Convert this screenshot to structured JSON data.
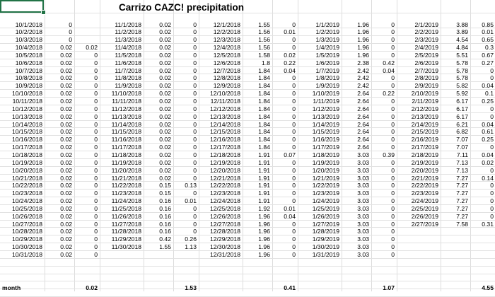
{
  "title": "Carrizo CAZC! precipitation",
  "summary_label": "month",
  "monthly_totals": [
    "0.02",
    "1.53",
    "0.41",
    "1.07",
    "4.55"
  ],
  "blocks": [
    {
      "rows": [
        [
          "10/1/2018",
          "0",
          ""
        ],
        [
          "10/2/2018",
          "0",
          ""
        ],
        [
          "10/3/2018",
          "0",
          ""
        ],
        [
          "10/4/2018",
          "0.02",
          "0.02"
        ],
        [
          "10/5/2018",
          "0.02",
          "0"
        ],
        [
          "10/6/2018",
          "0.02",
          "0"
        ],
        [
          "10/7/2018",
          "0.02",
          "0"
        ],
        [
          "10/8/2018",
          "0.02",
          "0"
        ],
        [
          "10/9/2018",
          "0.02",
          "0"
        ],
        [
          "10/10/2018",
          "0.02",
          "0"
        ],
        [
          "10/11/2018",
          "0.02",
          "0"
        ],
        [
          "10/12/2018",
          "0.02",
          "0"
        ],
        [
          "10/13/2018",
          "0.02",
          "0"
        ],
        [
          "10/14/2018",
          "0.02",
          "0"
        ],
        [
          "10/15/2018",
          "0.02",
          "0"
        ],
        [
          "10/16/2018",
          "0.02",
          "0"
        ],
        [
          "10/17/2018",
          "0.02",
          "0"
        ],
        [
          "10/18/2018",
          "0.02",
          "0"
        ],
        [
          "10/19/2018",
          "0.02",
          "0"
        ],
        [
          "10/20/2018",
          "0.02",
          "0"
        ],
        [
          "10/21/2018",
          "0.02",
          "0"
        ],
        [
          "10/22/2018",
          "0.02",
          "0"
        ],
        [
          "10/23/2018",
          "0.02",
          "0"
        ],
        [
          "10/24/2018",
          "0.02",
          "0"
        ],
        [
          "10/25/2018",
          "0.02",
          "0"
        ],
        [
          "10/26/2018",
          "0.02",
          "0"
        ],
        [
          "10/27/2018",
          "0.02",
          "0"
        ],
        [
          "10/28/2018",
          "0.02",
          "0"
        ],
        [
          "10/29/2018",
          "0.02",
          "0"
        ],
        [
          "10/30/2018",
          "0.02",
          "0"
        ],
        [
          "10/31/2018",
          "0.02",
          "0"
        ]
      ]
    },
    {
      "rows": [
        [
          "11/1/2018",
          "0.02",
          "0"
        ],
        [
          "11/2/2018",
          "0.02",
          "0"
        ],
        [
          "11/3/2018",
          "0.02",
          "0"
        ],
        [
          "11/4/2018",
          "0.02",
          "0"
        ],
        [
          "11/5/2018",
          "0.02",
          "0"
        ],
        [
          "11/6/2018",
          "0.02",
          "0"
        ],
        [
          "11/7/2018",
          "0.02",
          "0"
        ],
        [
          "11/8/2018",
          "0.02",
          "0"
        ],
        [
          "11/9/2018",
          "0.02",
          "0"
        ],
        [
          "11/10/2018",
          "0.02",
          "0"
        ],
        [
          "11/11/2018",
          "0.02",
          "0"
        ],
        [
          "11/12/2018",
          "0.02",
          "0"
        ],
        [
          "11/13/2018",
          "0.02",
          "0"
        ],
        [
          "11/14/2018",
          "0.02",
          "0"
        ],
        [
          "11/15/2018",
          "0.02",
          "0"
        ],
        [
          "11/16/2018",
          "0.02",
          "0"
        ],
        [
          "11/17/2018",
          "0.02",
          "0"
        ],
        [
          "11/18/2018",
          "0.02",
          "0"
        ],
        [
          "11/19/2018",
          "0.02",
          "0"
        ],
        [
          "11/20/2018",
          "0.02",
          "0"
        ],
        [
          "11/21/2018",
          "0.02",
          "0"
        ],
        [
          "11/22/2018",
          "0.15",
          "0.13"
        ],
        [
          "11/23/2018",
          "0.15",
          "0"
        ],
        [
          "11/24/2018",
          "0.16",
          "0.01"
        ],
        [
          "11/25/2018",
          "0.16",
          "0"
        ],
        [
          "11/26/2018",
          "0.16",
          "0"
        ],
        [
          "11/27/2018",
          "0.16",
          "0"
        ],
        [
          "11/28/2018",
          "0.16",
          "0"
        ],
        [
          "11/29/2018",
          "0.42",
          "0.26"
        ],
        [
          "11/30/2018",
          "1.55",
          "1.13"
        ],
        [
          "",
          "",
          ""
        ]
      ]
    },
    {
      "rows": [
        [
          "12/1/2018",
          "1.55",
          "0"
        ],
        [
          "12/2/2018",
          "1.56",
          "0.01"
        ],
        [
          "12/3/2018",
          "1.56",
          "0"
        ],
        [
          "12/4/2018",
          "1.56",
          "0"
        ],
        [
          "12/5/2018",
          "1.58",
          "0.02"
        ],
        [
          "12/6/2018",
          "1.8",
          "0.22"
        ],
        [
          "12/7/2018",
          "1.84",
          "0.04"
        ],
        [
          "12/8/2018",
          "1.84",
          "0"
        ],
        [
          "12/9/2018",
          "1.84",
          "0"
        ],
        [
          "12/10/2018",
          "1.84",
          "0"
        ],
        [
          "12/11/2018",
          "1.84",
          "0"
        ],
        [
          "12/12/2018",
          "1.84",
          "0"
        ],
        [
          "12/13/2018",
          "1.84",
          "0"
        ],
        [
          "12/14/2018",
          "1.84",
          "0"
        ],
        [
          "12/15/2018",
          "1.84",
          "0"
        ],
        [
          "12/16/2018",
          "1.84",
          "0"
        ],
        [
          "12/17/2018",
          "1.84",
          "0"
        ],
        [
          "12/18/2018",
          "1.91",
          "0.07"
        ],
        [
          "12/19/2018",
          "1.91",
          "0"
        ],
        [
          "12/20/2018",
          "1.91",
          "0"
        ],
        [
          "12/21/2018",
          "1.91",
          "0"
        ],
        [
          "12/22/2018",
          "1.91",
          "0"
        ],
        [
          "12/23/2018",
          "1.91",
          "0"
        ],
        [
          "12/24/2018",
          "1.91",
          "0"
        ],
        [
          "12/25/2018",
          "1.92",
          "0.01"
        ],
        [
          "12/26/2018",
          "1.96",
          "0.04"
        ],
        [
          "12/27/2018",
          "1.96",
          "0"
        ],
        [
          "12/28/2018",
          "1.96",
          "0"
        ],
        [
          "12/29/2018",
          "1.96",
          "0"
        ],
        [
          "12/30/2018",
          "1.96",
          "0"
        ],
        [
          "12/31/2018",
          "1.96",
          "0"
        ]
      ]
    },
    {
      "rows": [
        [
          "1/1/2019",
          "1.96",
          "0"
        ],
        [
          "1/2/2019",
          "1.96",
          "0"
        ],
        [
          "1/3/2019",
          "1.96",
          "0"
        ],
        [
          "1/4/2019",
          "1.96",
          "0"
        ],
        [
          "1/5/2019",
          "1.96",
          "0"
        ],
        [
          "1/6/2019",
          "2.38",
          "0.42"
        ],
        [
          "1/7/2019",
          "2.42",
          "0.04"
        ],
        [
          "1/8/2019",
          "2.42",
          "0"
        ],
        [
          "1/9/2019",
          "2.42",
          "0"
        ],
        [
          "1/10/2019",
          "2.64",
          "0.22"
        ],
        [
          "1/11/2019",
          "2.64",
          "0"
        ],
        [
          "1/12/2019",
          "2.64",
          "0"
        ],
        [
          "1/13/2019",
          "2.64",
          "0"
        ],
        [
          "1/14/2019",
          "2.64",
          "0"
        ],
        [
          "1/15/2019",
          "2.64",
          "0"
        ],
        [
          "1/16/2019",
          "2.64",
          "0"
        ],
        [
          "1/17/2019",
          "2.64",
          "0"
        ],
        [
          "1/18/2019",
          "3.03",
          "0.39"
        ],
        [
          "1/19/2019",
          "3.03",
          "0"
        ],
        [
          "1/20/2019",
          "3.03",
          "0"
        ],
        [
          "1/21/2019",
          "3.03",
          "0"
        ],
        [
          "1/22/2019",
          "3.03",
          "0"
        ],
        [
          "1/23/2019",
          "3.03",
          "0"
        ],
        [
          "1/24/2019",
          "3.03",
          "0"
        ],
        [
          "1/25/2019",
          "3.03",
          "0"
        ],
        [
          "1/26/2019",
          "3.03",
          "0"
        ],
        [
          "1/27/2019",
          "3.03",
          "0"
        ],
        [
          "1/28/2019",
          "3.03",
          "0"
        ],
        [
          "1/29/2019",
          "3.03",
          "0"
        ],
        [
          "1/30/2019",
          "3.03",
          "0"
        ],
        [
          "1/31/2019",
          "3.03",
          "0"
        ]
      ]
    },
    {
      "rows": [
        [
          "2/1/2019",
          "3.88",
          "0.85"
        ],
        [
          "2/2/2019",
          "3.89",
          "0.01"
        ],
        [
          "2/3/2019",
          "4.54",
          "0.65"
        ],
        [
          "2/4/2019",
          "4.84",
          "0.3"
        ],
        [
          "2/5/2019",
          "5.51",
          "0.67"
        ],
        [
          "2/6/2019",
          "5.78",
          "0.27"
        ],
        [
          "2/7/2019",
          "5.78",
          "0"
        ],
        [
          "2/8/2019",
          "5.78",
          "0"
        ],
        [
          "2/9/2019",
          "5.82",
          "0.04"
        ],
        [
          "2/10/2019",
          "5.92",
          "0.1"
        ],
        [
          "2/11/2019",
          "6.17",
          "0.25"
        ],
        [
          "2/12/2019",
          "6.17",
          "0"
        ],
        [
          "2/13/2019",
          "6.17",
          "0"
        ],
        [
          "2/14/2019",
          "6.21",
          "0.04"
        ],
        [
          "2/15/2019",
          "6.82",
          "0.61"
        ],
        [
          "2/16/2019",
          "7.07",
          "0.25"
        ],
        [
          "2/17/2019",
          "7.07",
          "0"
        ],
        [
          "2/18/2019",
          "7.11",
          "0.04"
        ],
        [
          "2/19/2019",
          "7.13",
          "0.02"
        ],
        [
          "2/20/2019",
          "7.13",
          "0"
        ],
        [
          "2/21/2019",
          "7.27",
          "0.14"
        ],
        [
          "2/22/2019",
          "7.27",
          "0"
        ],
        [
          "2/23/2019",
          "7.27",
          "0"
        ],
        [
          "2/24/2019",
          "7.27",
          "0"
        ],
        [
          "2/25/2019",
          "7.27",
          "0"
        ],
        [
          "2/26/2019",
          "7.27",
          "0"
        ],
        [
          "2/27/2019",
          "7.58",
          "0.31"
        ],
        [
          "",
          "",
          ""
        ],
        [
          "",
          "",
          ""
        ],
        [
          "",
          "",
          ""
        ],
        [
          "",
          "",
          ""
        ]
      ]
    }
  ]
}
